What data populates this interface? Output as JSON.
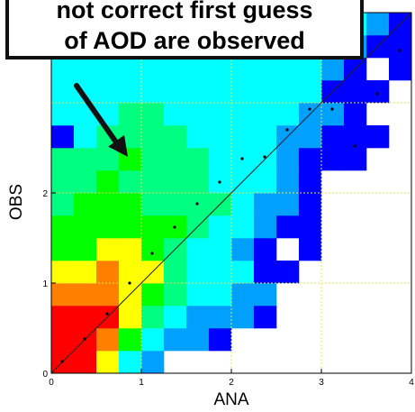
{
  "callout": {
    "line1": "not correct first guess",
    "line2": "of AOD are observed"
  },
  "chart_data": {
    "type": "heatmap",
    "xlabel": "ANA",
    "ylabel": "OBS",
    "xlim": [
      0,
      4
    ],
    "ylim": [
      0,
      4
    ],
    "x_ticks": [
      "0",
      "1",
      "2",
      "3",
      "4"
    ],
    "y_ticks": [
      "0",
      "1",
      "2"
    ],
    "bin_size": 0.25,
    "grid": true,
    "diagonal_line": true,
    "color_scale": [
      "#0000ff",
      "#00a0ff",
      "#00ffff",
      "#00ff80",
      "#00ff00",
      "#ffff00",
      "#ff8000",
      "#ff0000"
    ],
    "cells": [
      [
        0,
        0,
        7
      ],
      [
        1,
        0,
        7
      ],
      [
        2,
        0,
        5
      ],
      [
        3,
        0,
        2
      ],
      [
        4,
        0,
        1
      ],
      [
        0,
        1,
        7
      ],
      [
        1,
        1,
        7
      ],
      [
        2,
        1,
        6
      ],
      [
        3,
        1,
        4
      ],
      [
        4,
        1,
        2
      ],
      [
        5,
        1,
        1
      ],
      [
        6,
        1,
        1
      ],
      [
        7,
        1,
        0
      ],
      [
        0,
        2,
        7
      ],
      [
        1,
        2,
        7
      ],
      [
        2,
        2,
        7
      ],
      [
        3,
        2,
        5
      ],
      [
        4,
        2,
        3
      ],
      [
        5,
        2,
        2
      ],
      [
        6,
        2,
        1
      ],
      [
        7,
        2,
        1
      ],
      [
        8,
        2,
        1
      ],
      [
        9,
        2,
        0
      ],
      [
        0,
        3,
        6
      ],
      [
        1,
        3,
        6
      ],
      [
        2,
        3,
        6
      ],
      [
        3,
        3,
        5
      ],
      [
        4,
        3,
        4
      ],
      [
        5,
        3,
        3
      ],
      [
        6,
        3,
        2
      ],
      [
        7,
        3,
        2
      ],
      [
        8,
        3,
        1
      ],
      [
        9,
        3,
        1
      ],
      [
        0,
        4,
        5
      ],
      [
        1,
        4,
        5
      ],
      [
        2,
        4,
        6
      ],
      [
        3,
        4,
        5
      ],
      [
        4,
        4,
        5
      ],
      [
        5,
        4,
        3
      ],
      [
        6,
        4,
        2
      ],
      [
        7,
        4,
        2
      ],
      [
        8,
        4,
        2
      ],
      [
        9,
        4,
        0
      ],
      [
        10,
        4,
        0
      ],
      [
        0,
        5,
        4
      ],
      [
        1,
        5,
        4
      ],
      [
        2,
        5,
        5
      ],
      [
        3,
        5,
        5
      ],
      [
        4,
        5,
        4
      ],
      [
        5,
        5,
        3
      ],
      [
        6,
        5,
        2
      ],
      [
        7,
        5,
        2
      ],
      [
        8,
        5,
        1
      ],
      [
        9,
        5,
        0
      ],
      [
        11,
        5,
        0
      ],
      [
        0,
        6,
        4
      ],
      [
        1,
        6,
        4
      ],
      [
        2,
        6,
        4
      ],
      [
        3,
        6,
        4
      ],
      [
        4,
        6,
        4
      ],
      [
        5,
        6,
        4
      ],
      [
        6,
        6,
        3
      ],
      [
        7,
        6,
        2
      ],
      [
        8,
        6,
        2
      ],
      [
        9,
        6,
        1
      ],
      [
        10,
        6,
        0
      ],
      [
        11,
        6,
        0
      ],
      [
        0,
        7,
        3
      ],
      [
        1,
        7,
        4
      ],
      [
        2,
        7,
        4
      ],
      [
        3,
        7,
        4
      ],
      [
        4,
        7,
        3
      ],
      [
        5,
        7,
        3
      ],
      [
        6,
        7,
        3
      ],
      [
        7,
        7,
        3
      ],
      [
        8,
        7,
        2
      ],
      [
        9,
        7,
        1
      ],
      [
        10,
        7,
        1
      ],
      [
        11,
        7,
        0
      ],
      [
        0,
        8,
        3
      ],
      [
        1,
        8,
        3
      ],
      [
        2,
        8,
        4
      ],
      [
        3,
        8,
        3
      ],
      [
        4,
        8,
        3
      ],
      [
        5,
        8,
        3
      ],
      [
        6,
        8,
        3
      ],
      [
        7,
        8,
        2
      ],
      [
        8,
        8,
        2
      ],
      [
        9,
        8,
        2
      ],
      [
        10,
        8,
        1
      ],
      [
        11,
        8,
        0
      ],
      [
        0,
        9,
        3
      ],
      [
        1,
        9,
        3
      ],
      [
        2,
        9,
        3
      ],
      [
        3,
        9,
        4
      ],
      [
        4,
        9,
        3
      ],
      [
        5,
        9,
        3
      ],
      [
        6,
        9,
        3
      ],
      [
        7,
        9,
        2
      ],
      [
        8,
        9,
        2
      ],
      [
        9,
        9,
        2
      ],
      [
        10,
        9,
        1
      ],
      [
        11,
        9,
        0
      ],
      [
        12,
        9,
        0
      ],
      [
        13,
        9,
        0
      ],
      [
        0,
        10,
        0
      ],
      [
        1,
        10,
        2
      ],
      [
        2,
        10,
        3
      ],
      [
        3,
        10,
        3
      ],
      [
        4,
        10,
        3
      ],
      [
        5,
        10,
        3
      ],
      [
        6,
        10,
        2
      ],
      [
        7,
        10,
        2
      ],
      [
        8,
        10,
        2
      ],
      [
        9,
        10,
        2
      ],
      [
        10,
        10,
        1
      ],
      [
        11,
        10,
        1
      ],
      [
        12,
        10,
        0
      ],
      [
        13,
        10,
        0
      ],
      [
        14,
        10,
        0
      ],
      [
        0,
        11,
        2
      ],
      [
        1,
        11,
        2
      ],
      [
        2,
        11,
        2
      ],
      [
        3,
        11,
        3
      ],
      [
        4,
        11,
        3
      ],
      [
        5,
        11,
        2
      ],
      [
        6,
        11,
        2
      ],
      [
        7,
        11,
        2
      ],
      [
        8,
        11,
        2
      ],
      [
        9,
        11,
        2
      ],
      [
        10,
        11,
        2
      ],
      [
        11,
        11,
        1
      ],
      [
        12,
        11,
        1
      ],
      [
        13,
        11,
        0
      ],
      [
        0,
        12,
        2
      ],
      [
        1,
        12,
        2
      ],
      [
        2,
        12,
        2
      ],
      [
        3,
        12,
        2
      ],
      [
        4,
        12,
        2
      ],
      [
        5,
        12,
        2
      ],
      [
        6,
        12,
        2
      ],
      [
        7,
        12,
        2
      ],
      [
        8,
        12,
        2
      ],
      [
        9,
        12,
        2
      ],
      [
        10,
        12,
        2
      ],
      [
        11,
        12,
        2
      ],
      [
        12,
        12,
        0
      ],
      [
        13,
        12,
        0
      ],
      [
        14,
        12,
        0
      ],
      [
        0,
        13,
        2
      ],
      [
        1,
        13,
        2
      ],
      [
        2,
        13,
        2
      ],
      [
        3,
        13,
        2
      ],
      [
        4,
        13,
        2
      ],
      [
        5,
        13,
        2
      ],
      [
        6,
        13,
        2
      ],
      [
        7,
        13,
        2
      ],
      [
        8,
        13,
        2
      ],
      [
        9,
        13,
        2
      ],
      [
        10,
        13,
        2
      ],
      [
        11,
        13,
        2
      ],
      [
        12,
        13,
        1
      ],
      [
        13,
        13,
        0
      ],
      [
        15,
        13,
        0
      ],
      [
        0,
        14,
        0
      ],
      [
        1,
        14,
        2
      ],
      [
        2,
        14,
        2
      ],
      [
        3,
        14,
        2
      ],
      [
        4,
        14,
        2
      ],
      [
        5,
        14,
        2
      ],
      [
        6,
        14,
        2
      ],
      [
        7,
        14,
        2
      ],
      [
        8,
        14,
        2
      ],
      [
        9,
        14,
        2
      ],
      [
        10,
        14,
        2
      ],
      [
        11,
        14,
        2
      ],
      [
        12,
        14,
        2
      ],
      [
        13,
        14,
        1
      ],
      [
        14,
        14,
        0
      ],
      [
        15,
        14,
        0
      ],
      [
        0,
        15,
        0
      ],
      [
        1,
        15,
        0
      ],
      [
        2,
        15,
        0
      ],
      [
        3,
        15,
        0
      ],
      [
        4,
        15,
        2
      ],
      [
        5,
        15,
        2
      ],
      [
        6,
        15,
        2
      ],
      [
        7,
        15,
        2
      ],
      [
        8,
        15,
        2
      ],
      [
        9,
        15,
        2
      ],
      [
        10,
        15,
        2
      ],
      [
        11,
        15,
        2
      ],
      [
        12,
        15,
        2
      ],
      [
        13,
        15,
        2
      ],
      [
        14,
        15,
        1
      ],
      [
        15,
        15,
        0
      ]
    ],
    "mean_points": [
      [
        0.12,
        0.13
      ],
      [
        0.37,
        0.38
      ],
      [
        0.62,
        0.66
      ],
      [
        0.87,
        1.0
      ],
      [
        1.12,
        1.33
      ],
      [
        1.37,
        1.62
      ],
      [
        1.62,
        1.88
      ],
      [
        1.87,
        2.12
      ],
      [
        2.12,
        2.38
      ],
      [
        2.37,
        2.4
      ],
      [
        2.62,
        2.7
      ],
      [
        2.87,
        2.93
      ],
      [
        3.12,
        2.93
      ],
      [
        3.37,
        2.52
      ],
      [
        3.62,
        3.1
      ],
      [
        3.87,
        3.58
      ]
    ],
    "annotation_arrow": {
      "from": [
        0.35,
        3.2
      ],
      "to": [
        0.85,
        2.4
      ]
    }
  }
}
